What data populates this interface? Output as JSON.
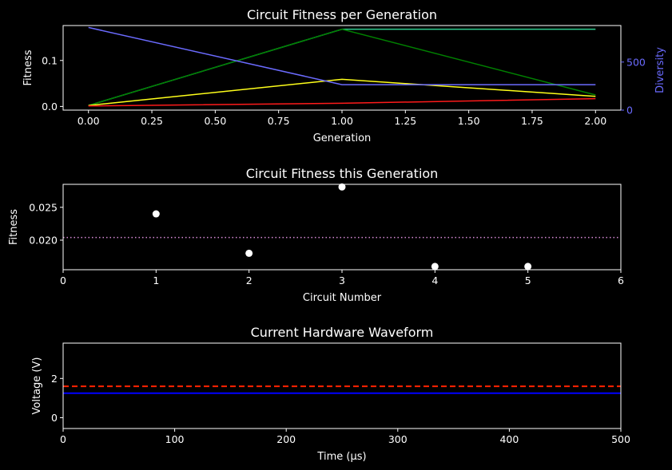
{
  "colors": {
    "background": "#000000",
    "foreground": "#ffffff",
    "diversity": "#6b6bff",
    "green": "#008000",
    "teal": "#2ecc8f",
    "yellow": "#ffff1a",
    "red": "#ff1a1a",
    "blue_line": "#0000ff",
    "dashed_red": "#ff2200",
    "mean_line": "#d88ad8"
  },
  "chart_data": [
    {
      "type": "line",
      "title": "Circuit Fitness per Generation",
      "xlabel": "Generation",
      "ylabel": "Fitness",
      "y2label": "Diversity",
      "xlim": [
        -0.1,
        2.1
      ],
      "ylim": [
        -0.008,
        0.176
      ],
      "y2lim": [
        0,
        880
      ],
      "xticks": [
        0.0,
        0.25,
        0.5,
        0.75,
        1.0,
        1.25,
        1.5,
        1.75,
        2.0
      ],
      "xtick_labels": [
        "0.00",
        "0.25",
        "0.50",
        "0.75",
        "1.00",
        "1.25",
        "1.50",
        "1.75",
        "2.00"
      ],
      "yticks": [
        0.0,
        0.1
      ],
      "ytick_labels": [
        "0.0",
        "0.1"
      ],
      "y2ticks": [
        0,
        500
      ],
      "y2tick_labels": [
        "0",
        "500"
      ],
      "x": [
        0,
        1,
        2
      ],
      "series": [
        {
          "values": [
            0.002,
            0.168,
            0.168
          ],
          "color": "teal",
          "axis": "left"
        },
        {
          "values": [
            0.002,
            0.168,
            0.025
          ],
          "color": "green",
          "axis": "left"
        },
        {
          "values": [
            0.002,
            0.059,
            0.022
          ],
          "color": "yellow",
          "axis": "left"
        },
        {
          "values": [
            0.001,
            0.007,
            0.017
          ],
          "color": "red",
          "axis": "left"
        },
        {
          "values": [
            860,
            265,
            265
          ],
          "color": "diversity",
          "axis": "right"
        }
      ]
    },
    {
      "type": "scatter",
      "title": "Circuit Fitness this Generation",
      "xlabel": "Circuit Number",
      "ylabel": "Fitness",
      "xlim": [
        0,
        6
      ],
      "ylim": [
        0.0155,
        0.0285
      ],
      "xticks": [
        0,
        1,
        2,
        3,
        4,
        5,
        6
      ],
      "xtick_labels": [
        "0",
        "1",
        "2",
        "3",
        "4",
        "5",
        "6"
      ],
      "yticks": [
        0.02,
        0.025
      ],
      "ytick_labels": [
        "0.020",
        "0.025"
      ],
      "points": {
        "x": [
          1,
          2,
          3,
          4,
          5
        ],
        "y": [
          0.024,
          0.018,
          0.0281,
          0.016,
          0.016
        ]
      },
      "mean_line": 0.0204
    },
    {
      "type": "line",
      "title": "Current Hardware Waveform",
      "xlabel": "Time (µs)",
      "ylabel": "Voltage (V)",
      "xlim": [
        0,
        500
      ],
      "ylim": [
        -0.55,
        3.8
      ],
      "xticks": [
        0,
        100,
        200,
        300,
        400,
        500
      ],
      "xtick_labels": [
        "0",
        "100",
        "200",
        "300",
        "400",
        "500"
      ],
      "yticks": [
        0,
        2
      ],
      "ytick_labels": [
        "0",
        "2"
      ],
      "series": [
        {
          "x": [
            0,
            500
          ],
          "values": [
            1.25,
            1.25
          ],
          "color": "blue_line",
          "style": "solid"
        },
        {
          "x": [
            0,
            500
          ],
          "values": [
            1.6,
            1.6
          ],
          "color": "dashed_red",
          "style": "dashed"
        }
      ]
    }
  ]
}
